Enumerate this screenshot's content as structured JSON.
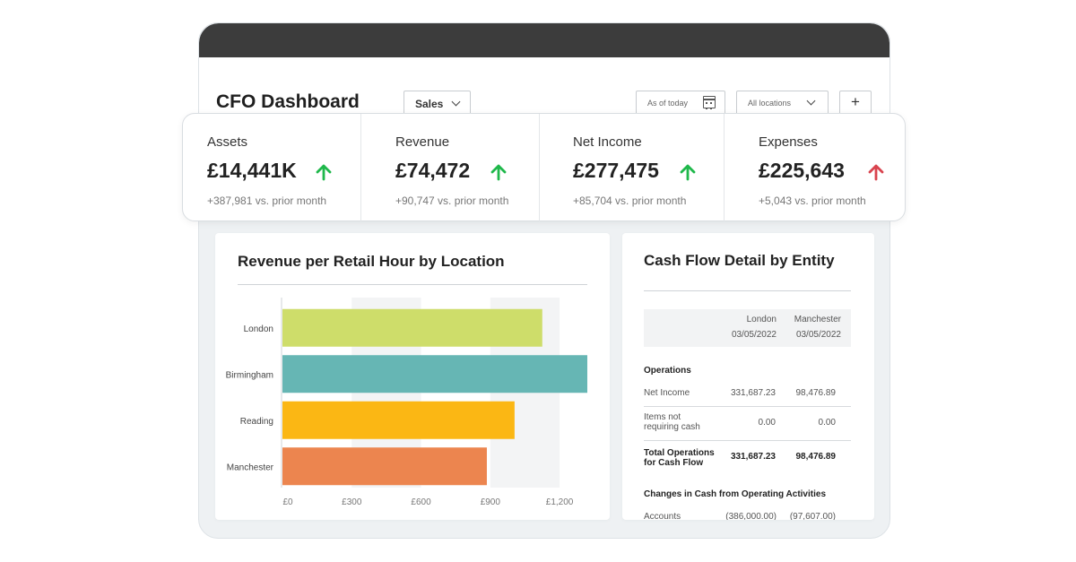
{
  "header": {
    "title": "CFO Dashboard",
    "view_select": "Sales",
    "date_field": "As of today",
    "location_select": "All locations",
    "add_button": "+"
  },
  "kpis": [
    {
      "label": "Assets",
      "value": "£14,441K",
      "delta": "+387,981 vs. prior month",
      "trend": "up",
      "trend_color": "#1fb84b"
    },
    {
      "label": "Revenue",
      "value": "£74,472",
      "delta": "+90,747 vs. prior month",
      "trend": "up",
      "trend_color": "#1fb84b"
    },
    {
      "label": "Net Income",
      "value": "£277,475",
      "delta": "+85,704 vs. prior month",
      "trend": "up",
      "trend_color": "#1fb84b"
    },
    {
      "label": "Expenses",
      "value": "£225,643",
      "delta": "+5,043 vs. prior month",
      "trend": "up",
      "trend_color": "#d9434e"
    }
  ],
  "revenue_panel": {
    "title": "Revenue per Retail Hour by Location"
  },
  "chart_data": {
    "type": "bar",
    "orientation": "horizontal",
    "title": "Revenue per Retail Hour by Location",
    "categories": [
      "London",
      "Birmingham",
      "Reading",
      "Manchester"
    ],
    "values": [
      1125,
      1320,
      1005,
      885
    ],
    "colors": [
      "#cedd6a",
      "#66b6b4",
      "#fbb714",
      "#ec854f"
    ],
    "xlim": [
      0,
      1320
    ],
    "x_ticks": [
      0,
      300,
      600,
      900,
      1200
    ],
    "x_tick_labels": [
      "£0",
      "£300",
      "£600",
      "£900",
      "£1,200"
    ],
    "grid": "alternating vertical bands"
  },
  "cashflow": {
    "title": "Cash Flow Detail by Entity",
    "columns": [
      {
        "entity": "London",
        "date": "03/05/2022"
      },
      {
        "entity": "Manchester",
        "date": "03/05/2022"
      }
    ],
    "section1": "Operations",
    "rows": [
      {
        "label": "Net Income",
        "london": "331,687.23",
        "manchester": "98,476.89",
        "bold": false
      },
      {
        "label_line1": "Items not",
        "label_line2": "requiring cash",
        "london": "0.00",
        "manchester": "0.00",
        "bold": false
      },
      {
        "label_line1": "Total Operations",
        "label_line2": "for Cash Flow",
        "london": "331,687.23",
        "manchester": "98,476.89",
        "bold": true
      }
    ],
    "section2": "Changes in Cash from Operating Activities",
    "last_row": {
      "label": "Accounts",
      "london": "(386,000.00)",
      "manchester": "(97,607.00)"
    }
  }
}
